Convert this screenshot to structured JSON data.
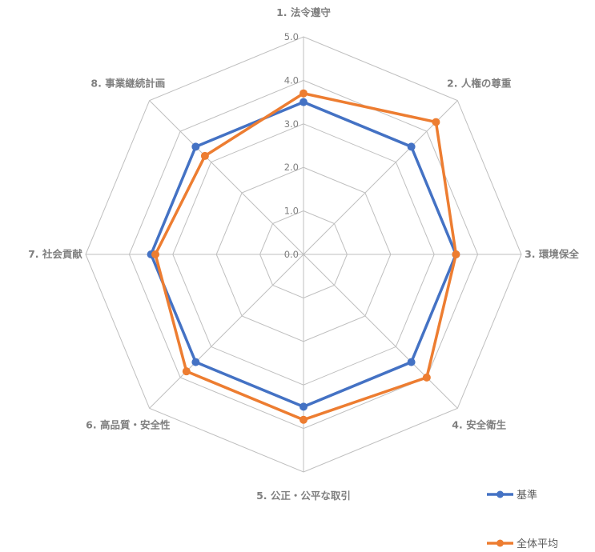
{
  "chart_data": {
    "type": "radar",
    "categories": [
      "1. 法令遵守",
      "2. 人権の尊重",
      "3. 環境保全",
      "4. 安全衛生",
      "5. 公正・公平な取引",
      "6. 高品質・安全性",
      "7. 社会貢献",
      "8. 事業継続計画"
    ],
    "ticks": [
      "0.0",
      "1.0",
      "2.0",
      "3.0",
      "4.0",
      "5.0"
    ],
    "rlim": [
      0,
      5
    ],
    "grid": true,
    "legend_position": "bottom-right",
    "series": [
      {
        "name": "基準",
        "color": "#4472c4",
        "values": [
          3.5,
          3.5,
          3.5,
          3.5,
          3.5,
          3.5,
          3.5,
          3.5
        ]
      },
      {
        "name": "全体平均",
        "color": "#ed7d31",
        "values": [
          3.7,
          4.3,
          3.5,
          4.0,
          3.8,
          3.8,
          3.4,
          3.2
        ]
      }
    ]
  }
}
